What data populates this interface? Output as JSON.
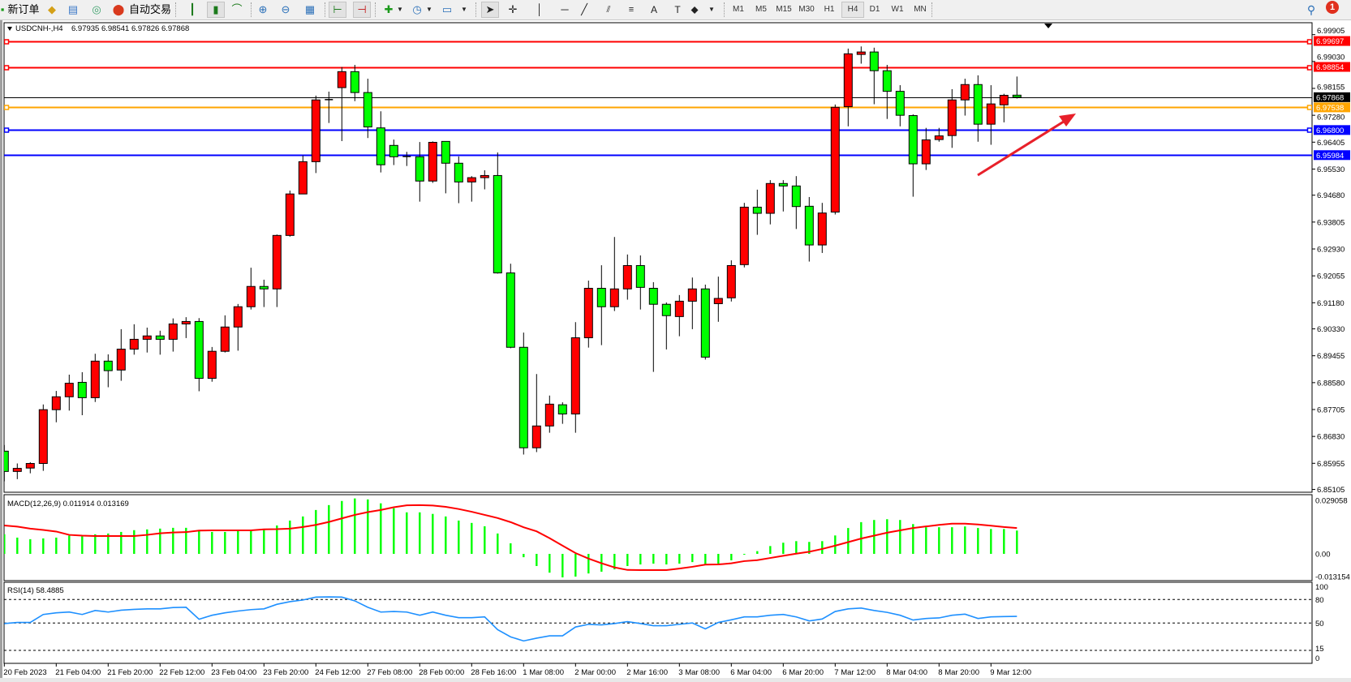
{
  "toolbar": {
    "new_order_label": "新订单",
    "auto_trading_label": "自动交易",
    "timeframes": [
      "M1",
      "M5",
      "M15",
      "M30",
      "H1",
      "H4",
      "D1",
      "W1",
      "MN"
    ],
    "selected_timeframe": "H4",
    "notification_count": "1"
  },
  "chart": {
    "symbol_header": "USDCNH-,H4",
    "ohlc_header": "6.97935 6.98541 6.97826 6.97868",
    "colors": {
      "bull": "#ff0000",
      "bear": "#00ff00",
      "wick": "#000000",
      "macd_hist": "#00ff00",
      "macd_signal": "#ff0000",
      "rsi": "#1e90ff",
      "arrow": "#e8202a"
    },
    "price_ticks": [
      "6.99905",
      "6.99030",
      "6.98155",
      "6.97280",
      "6.96405",
      "6.95530",
      "6.94680",
      "6.93805",
      "6.92930",
      "6.92055",
      "6.91180",
      "6.90330",
      "6.89455",
      "6.88580",
      "6.87705",
      "6.86830",
      "6.85955",
      "6.85105"
    ],
    "levels": [
      {
        "price": "6.99697",
        "color": "#ff0000",
        "anchor": true
      },
      {
        "price": "6.98854",
        "color": "#ff0000",
        "anchor": true
      },
      {
        "price": "6.97868",
        "color": "#000000",
        "anchor": false
      },
      {
        "price": "6.97538",
        "color": "#ffa500",
        "anchor": true
      },
      {
        "price": "6.96800",
        "color": "#0000ff",
        "anchor": true
      },
      {
        "price": "6.95984",
        "color": "#0000ff",
        "anchor": false
      }
    ],
    "time_labels": [
      "20 Feb 2023",
      "21 Feb 04:00",
      "21 Feb 20:00",
      "22 Feb 12:00",
      "23 Feb 04:00",
      "23 Feb 20:00",
      "24 Feb 12:00",
      "27 Feb 08:00",
      "28 Feb 00:00",
      "28 Feb 16:00",
      "1 Mar 08:00",
      "2 Mar 00:00",
      "2 Mar 16:00",
      "3 Mar 08:00",
      "6 Mar 04:00",
      "6 Mar 20:00",
      "7 Mar 12:00",
      "8 Mar 04:00",
      "8 Mar 20:00",
      "9 Mar 12:00"
    ],
    "macd_label": "MACD(12,26,9) 0.011914 0.013169",
    "macd_ticks": [
      "0.029058",
      "0.00",
      "-0.013154"
    ],
    "rsi_label": "RSI(14) 58.4885",
    "rsi_ticks": [
      "100",
      "80",
      "50",
      "15",
      "0"
    ]
  },
  "chart_data": [
    {
      "type": "candlestick",
      "title": "USDCNH-,H4",
      "ylim": [
        6.85105,
        6.99905
      ],
      "ohlc": [
        [
          6.8635,
          6.8655,
          6.8537,
          6.8569
        ],
        [
          6.8569,
          6.8595,
          6.8544,
          6.8579
        ],
        [
          6.858,
          6.8599,
          6.8563,
          6.8595
        ],
        [
          6.8595,
          6.8787,
          6.8571,
          6.877
        ],
        [
          6.877,
          6.8831,
          6.8729,
          6.8812
        ],
        [
          6.8812,
          6.8884,
          6.8767,
          6.8856
        ],
        [
          6.8859,
          6.8892,
          6.8752,
          6.8809
        ],
        [
          6.8809,
          6.8952,
          6.8795,
          6.8928
        ],
        [
          6.8928,
          6.895,
          6.8843,
          6.8897
        ],
        [
          6.8899,
          6.9032,
          6.8864,
          6.8967
        ],
        [
          6.8967,
          6.9048,
          6.8949,
          6.8999
        ],
        [
          6.8999,
          6.9037,
          6.8956,
          6.901
        ],
        [
          6.901,
          6.9027,
          6.8949,
          6.8999
        ],
        [
          6.8999,
          6.9067,
          6.8959,
          6.9049
        ],
        [
          6.9049,
          6.9071,
          6.9003,
          6.9057
        ],
        [
          6.9057,
          6.9068,
          6.883,
          6.8872
        ],
        [
          6.8872,
          6.8974,
          6.8861,
          6.896
        ],
        [
          6.896,
          6.9077,
          6.8956,
          6.9039
        ],
        [
          6.9039,
          6.9114,
          6.8962,
          6.9105
        ],
        [
          6.9105,
          6.9232,
          6.9096,
          6.9171
        ],
        [
          6.9171,
          6.9193,
          6.9104,
          6.9163
        ],
        [
          6.9163,
          6.934,
          6.9104,
          6.9337
        ],
        [
          6.9337,
          6.9483,
          6.9333,
          6.9472
        ],
        [
          6.9472,
          6.9597,
          6.9472,
          6.9577
        ],
        [
          6.9577,
          6.9792,
          6.954,
          6.9778
        ],
        [
          6.9779,
          6.9805,
          6.9703,
          6.9779
        ],
        [
          6.9818,
          6.9885,
          6.9644,
          6.987
        ],
        [
          6.987,
          6.9892,
          6.9774,
          6.9802
        ],
        [
          6.9802,
          6.9847,
          6.9654,
          6.969
        ],
        [
          6.9687,
          6.9741,
          6.9542,
          6.9567
        ],
        [
          6.963,
          6.9649,
          6.9566,
          6.9593
        ],
        [
          6.9594,
          6.9609,
          6.9563,
          6.9594
        ],
        [
          6.9593,
          6.9641,
          6.9447,
          6.9514
        ],
        [
          6.9514,
          6.9643,
          6.9508,
          6.964
        ],
        [
          6.9643,
          6.9643,
          6.9474,
          6.9572
        ],
        [
          6.9572,
          6.9594,
          6.9442,
          6.9511
        ],
        [
          6.9511,
          6.953,
          6.9447,
          6.9525
        ],
        [
          6.9525,
          6.9549,
          6.9487,
          6.9532
        ],
        [
          6.9532,
          6.9607,
          6.9213,
          6.9215
        ],
        [
          6.9215,
          6.9245,
          6.897,
          6.8973
        ],
        [
          6.8973,
          6.9021,
          6.8624,
          6.8646
        ],
        [
          6.8646,
          6.8886,
          6.8632,
          6.8717
        ],
        [
          6.8717,
          6.8816,
          6.8695,
          6.8788
        ],
        [
          6.8786,
          6.8794,
          6.8724,
          6.8756
        ],
        [
          6.8756,
          6.9055,
          6.8695,
          6.9004
        ],
        [
          6.9004,
          6.919,
          6.8972,
          6.9165
        ],
        [
          6.9165,
          6.924,
          6.898,
          6.9105
        ],
        [
          6.9105,
          6.9332,
          6.9091,
          6.9163
        ],
        [
          6.9163,
          6.9275,
          6.9128,
          6.9239
        ],
        [
          6.9239,
          6.9272,
          6.9096,
          6.9168
        ],
        [
          6.9165,
          6.9185,
          6.8893,
          6.9113
        ],
        [
          6.9113,
          6.9119,
          6.8966,
          6.9076
        ],
        [
          6.9073,
          6.9143,
          6.9009,
          6.9123
        ],
        [
          6.9123,
          6.92,
          6.9032,
          6.9163
        ],
        [
          6.9163,
          6.9177,
          6.8933,
          6.8941
        ],
        [
          6.9115,
          6.9203,
          6.9056,
          6.9132
        ],
        [
          6.9134,
          6.9256,
          6.9122,
          6.9239
        ],
        [
          6.9242,
          6.9443,
          6.9233,
          6.9429
        ],
        [
          6.9429,
          6.9486,
          6.9339,
          6.9409
        ],
        [
          6.9409,
          6.9517,
          6.9373,
          6.9506
        ],
        [
          6.9506,
          6.9517,
          6.9415,
          6.9498
        ],
        [
          6.9498,
          6.953,
          6.9358,
          6.9431
        ],
        [
          6.9432,
          6.9462,
          6.9252,
          6.9306
        ],
        [
          6.9306,
          6.9443,
          6.928,
          6.941
        ],
        [
          6.9413,
          6.9763,
          6.9405,
          6.9754
        ],
        [
          6.9756,
          6.9945,
          6.9692,
          6.9928
        ],
        [
          6.9926,
          6.9952,
          6.9896,
          6.9934
        ],
        [
          6.9934,
          6.9948,
          6.9764,
          6.9873
        ],
        [
          6.9873,
          6.9892,
          6.9716,
          6.9806
        ],
        [
          6.9806,
          6.9826,
          6.9692,
          6.9728
        ],
        [
          6.9727,
          6.9731,
          6.9463,
          6.957
        ],
        [
          6.957,
          6.9687,
          6.955,
          6.9648
        ],
        [
          6.9649,
          6.9687,
          6.9642,
          6.9661
        ],
        [
          6.9662,
          6.9813,
          6.9622,
          6.9778
        ],
        [
          6.9778,
          6.9847,
          6.9727,
          6.9828
        ],
        [
          6.9828,
          6.9858,
          6.9642,
          6.9699
        ],
        [
          6.9699,
          6.9826,
          6.9632,
          6.9765
        ],
        [
          6.9762,
          6.9798,
          6.9705,
          6.9793
        ],
        [
          6.97935,
          6.98541,
          6.97826,
          6.97868
        ]
      ]
    },
    {
      "type": "bar+line",
      "title": "MACD(12,26,9)",
      "ylim": [
        -0.013154,
        0.029058
      ],
      "histogram": [
        0.01,
        0.0083,
        0.0075,
        0.0079,
        0.0083,
        0.0093,
        0.0093,
        0.01,
        0.0104,
        0.0112,
        0.0121,
        0.0125,
        0.0129,
        0.0133,
        0.0133,
        0.0116,
        0.0112,
        0.0112,
        0.0116,
        0.0121,
        0.0125,
        0.0145,
        0.017,
        0.0191,
        0.0224,
        0.0249,
        0.027,
        0.0283,
        0.0278,
        0.0258,
        0.0233,
        0.0212,
        0.0212,
        0.0204,
        0.0191,
        0.017,
        0.0158,
        0.0141,
        0.0104,
        0.0054,
        -0.0017,
        -0.0062,
        -0.0096,
        -0.012,
        -0.0116,
        -0.01,
        -0.0091,
        -0.0079,
        -0.0062,
        -0.0054,
        -0.005,
        -0.0054,
        -0.005,
        -0.0042,
        -0.0054,
        -0.005,
        -0.0033,
        -0.0003,
        0.0014,
        0.004,
        0.0057,
        0.0065,
        0.0061,
        0.0065,
        0.0094,
        0.0132,
        0.0162,
        0.0173,
        0.0177,
        0.0173,
        0.0152,
        0.0136,
        0.0136,
        0.0136,
        0.014,
        0.0132,
        0.0127,
        0.0127,
        0.0119
      ],
      "signal": [
        0.0145,
        0.0139,
        0.0129,
        0.0122,
        0.0114,
        0.0097,
        0.0093,
        0.0091,
        0.0091,
        0.0091,
        0.0091,
        0.0097,
        0.0105,
        0.0109,
        0.0111,
        0.0119,
        0.012,
        0.012,
        0.012,
        0.012,
        0.0125,
        0.0126,
        0.0129,
        0.0137,
        0.0148,
        0.0163,
        0.0181,
        0.0199,
        0.0213,
        0.0224,
        0.0238,
        0.0248,
        0.0249,
        0.0247,
        0.024,
        0.0229,
        0.0215,
        0.0199,
        0.0183,
        0.0162,
        0.0136,
        0.0115,
        0.008,
        0.0042,
        0.0004,
        -0.0024,
        -0.0048,
        -0.0069,
        -0.0082,
        -0.0083,
        -0.0083,
        -0.0083,
        -0.0075,
        -0.0066,
        -0.0055,
        -0.0054,
        -0.0048,
        -0.0037,
        -0.0032,
        -0.0021,
        -0.001,
        0.0001,
        0.0011,
        0.0025,
        0.0042,
        0.006,
        0.0078,
        0.0093,
        0.0108,
        0.012,
        0.0132,
        0.014,
        0.0148,
        0.0154,
        0.0154,
        0.015,
        0.0144,
        0.0137,
        0.0132
      ]
    },
    {
      "type": "line",
      "title": "RSI(14)",
      "ylim": [
        0,
        100
      ],
      "levels": [
        80,
        50,
        15
      ],
      "values": [
        49.3,
        50.7,
        50.7,
        60.9,
        63.0,
        64.0,
        60.9,
        66.0,
        64.0,
        66.4,
        67.4,
        68.1,
        68.1,
        69.8,
        70.1,
        54.8,
        59.9,
        63.0,
        65.3,
        67.1,
        68.1,
        73.9,
        77.3,
        79.4,
        83.1,
        83.4,
        83.1,
        78.3,
        70.1,
        64.0,
        64.7,
        64.0,
        59.9,
        64.0,
        59.9,
        56.8,
        56.8,
        57.8,
        41.5,
        32.3,
        27.1,
        30.6,
        33.6,
        33.6,
        44.9,
        48.3,
        47.6,
        49.3,
        51.7,
        49.3,
        46.6,
        46.6,
        48.3,
        50.0,
        42.5,
        50.7,
        54.1,
        57.8,
        57.8,
        59.9,
        60.9,
        57.8,
        52.7,
        55.1,
        64.7,
        68.1,
        69.1,
        66.0,
        63.6,
        59.9,
        53.8,
        55.8,
        56.5,
        59.9,
        61.3,
        55.8,
        57.8,
        58.2,
        58.4885
      ]
    }
  ]
}
